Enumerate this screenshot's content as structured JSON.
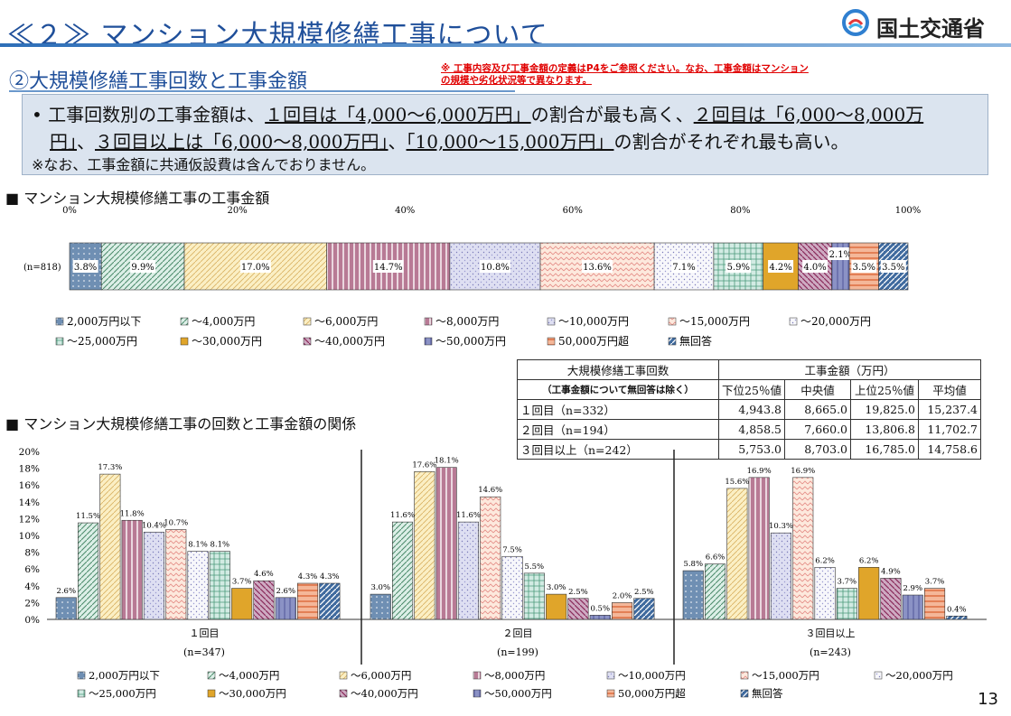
{
  "header": {
    "title": "≪２≫ マンション大規模修繕工事について",
    "logo_text": "国土交通省"
  },
  "subtitle": "②大規模修繕工事回数と工事金額",
  "note": "※ 工事内容及び工事金額の定義はP4をご参照ください。なお、工事金額はマンションの規模や劣化状況等で異なります。",
  "summary": {
    "l1_a": "• 工事回数別の工事金額は、",
    "l1_b": "１回目は「4,000～6,000万円」",
    "l1_c": "の割合が最も高く、",
    "l1_d": "２回目は「6,000～8,000万",
    "l2_a": "円」",
    "l2_b": "、",
    "l2_c": "３回目以上は「6,000～8,000万円」",
    "l2_d": "、",
    "l2_e": "「10,000～15,000万円」",
    "l2_f": "の割合がそれぞれ最も高い。",
    "l3": "※なお、工事金額に共通仮設費は含んでおりません。"
  },
  "section1_title": "■ マンション大規模修繕工事の工事金額",
  "section2_title": "■ マンション大規模修繕工事の回数と工事金額の関係",
  "page_number": "13",
  "categories": [
    "2,000万円以下",
    "～4,000万円",
    "～6,000万円",
    "～8,000万円",
    "～10,000万円",
    "～15,000万円",
    "～20,000万円",
    "～25,000万円",
    "～30,000万円",
    "～40,000万円",
    "～50,000万円",
    "50,000万円超",
    "無回答"
  ],
  "colors": [
    "#6f8fb3",
    "#dcefe7",
    "#fbefc4",
    "#b87a95",
    "#dedff2",
    "#fde9dd",
    "#f7f7fb",
    "#d2ebe3",
    "#e0a52a",
    "#ceaac2",
    "#8b92c5",
    "#f4b799",
    "#3f6a9e"
  ],
  "stats_table": {
    "head_left_1": "大規模修繕工事回数",
    "head_left_2": "（工事金額について無回答は除く）",
    "head_right": "工事金額（万円）",
    "columns": [
      "下位25％値",
      "中央値",
      "上位25％値",
      "平均値"
    ],
    "rows": [
      {
        "label": "１回目（n=332）",
        "values": [
          "4,943.8",
          "8,665.0",
          "19,825.0",
          "15,237.4"
        ]
      },
      {
        "label": "２回目（n=194）",
        "values": [
          "4,858.5",
          "7,660.0",
          "13,806.8",
          "11,702.7"
        ]
      },
      {
        "label": "３回目以上（n=242）",
        "values": [
          "5,753.0",
          "8,703.0",
          "16,785.0",
          "14,758.6"
        ]
      }
    ]
  },
  "chart_data": [
    {
      "type": "bar",
      "orientation": "horizontal-stacked-100",
      "row_label": "(n=818)",
      "x_ticks": [
        "0%",
        "20%",
        "40%",
        "60%",
        "80%",
        "100%"
      ],
      "categories": [
        "2,000万円以下",
        "～4,000万円",
        "～6,000万円",
        "～8,000万円",
        "～10,000万円",
        "～15,000万円",
        "～20,000万円",
        "～25,000万円",
        "～30,000万円",
        "～40,000万円",
        "～50,000万円",
        "50,000万円超",
        "無回答"
      ],
      "values": [
        3.8,
        9.9,
        17.0,
        14.7,
        10.8,
        13.6,
        7.1,
        5.9,
        4.2,
        4.0,
        2.1,
        3.5,
        3.5
      ],
      "labels": [
        "3.8%",
        "9.9%",
        "17.0%",
        "14.7%",
        "10.8%",
        "13.6%",
        "7.1%",
        "5.9%",
        "4.2%",
        "4.0%",
        "2.1%",
        "3.5%",
        "3.5%"
      ],
      "legend": "bottom"
    },
    {
      "type": "bar",
      "y_ticks": [
        "0%",
        "2%",
        "4%",
        "6%",
        "8%",
        "10%",
        "12%",
        "14%",
        "16%",
        "18%",
        "20%"
      ],
      "ylim": [
        0,
        20
      ],
      "groups": [
        {
          "name": "１回目",
          "n": "(n=347)",
          "values": [
            2.6,
            11.5,
            17.3,
            11.8,
            10.4,
            10.7,
            8.1,
            8.1,
            3.7,
            4.6,
            2.6,
            4.3,
            4.3
          ],
          "labels": [
            "2.6%",
            "11.5%",
            "17.3%",
            "11.8%",
            "10.4%",
            "10.7%",
            "8.1%",
            "8.1%",
            "3.7%",
            "4.6%",
            "2.6%",
            "4.3%",
            "4.3%"
          ]
        },
        {
          "name": "２回目",
          "n": "(n=199)",
          "values": [
            3.0,
            11.6,
            17.6,
            18.1,
            11.6,
            14.6,
            7.5,
            5.5,
            3.0,
            2.5,
            0.5,
            2.0,
            2.5
          ],
          "labels": [
            "3.0%",
            "11.6%",
            "17.6%",
            "18.1%",
            "11.6%",
            "14.6%",
            "7.5%",
            "5.5%",
            "3.0%",
            "2.5%",
            "0.5%",
            "2.0%",
            "2.5%"
          ]
        },
        {
          "name": "３回目以上",
          "n": "(n=243)",
          "values": [
            5.8,
            6.6,
            15.6,
            16.9,
            10.3,
            16.9,
            6.2,
            3.7,
            6.2,
            4.9,
            2.9,
            3.7,
            0.4
          ],
          "labels": [
            "5.8%",
            "6.6%",
            "15.6%",
            "16.9%",
            "10.3%",
            "16.9%",
            "6.2%",
            "3.7%",
            "6.2%",
            "4.9%",
            "2.9%",
            "3.7%",
            "0.4%"
          ]
        }
      ],
      "legend": "bottom"
    }
  ]
}
